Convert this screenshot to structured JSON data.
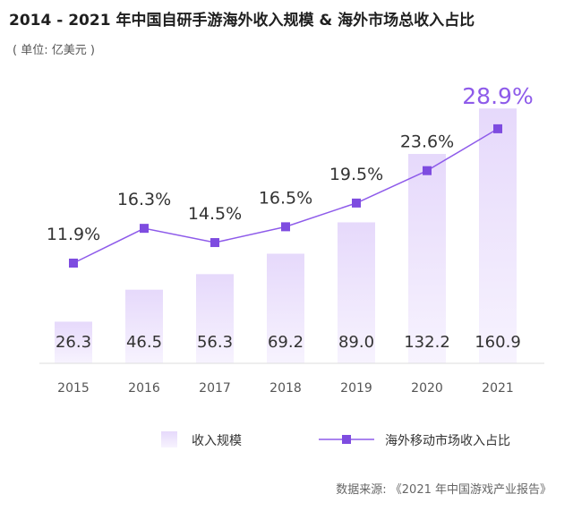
{
  "header": {
    "title": "2014 - 2021 年中国自研手游海外收入规模 & 海外市场总收入占比",
    "subtitle": "( 单位: 亿美元 )"
  },
  "footer": {
    "source": "数据来源: 《2021 年中国游戏产业报告》"
  },
  "colors": {
    "bar_top": "#e6d9fb",
    "bar_bottom": "#f7f3fe",
    "line": "#8e5bea",
    "marker": "#7e4ce0",
    "highlight": "#8e5bea"
  },
  "chart_data": {
    "type": "bar",
    "categories": [
      "2015",
      "2016",
      "2017",
      "2018",
      "2019",
      "2020",
      "2021"
    ],
    "series": [
      {
        "name": "收入规模",
        "type": "bar",
        "values": [
          26.3,
          46.5,
          56.3,
          69.2,
          89.0,
          132.2,
          160.9
        ],
        "labels": [
          "26.3",
          "46.5",
          "56.3",
          "69.2",
          "89.0",
          "132.2",
          "160.9"
        ]
      },
      {
        "name": "海外移动市场收入占比",
        "type": "line",
        "values": [
          11.9,
          16.3,
          14.5,
          16.5,
          19.5,
          23.6,
          28.9
        ],
        "labels": [
          "11.9%",
          "16.3%",
          "14.5%",
          "16.5%",
          "19.5%",
          "23.6%",
          "28.9%"
        ]
      }
    ],
    "title": "2014 - 2021 年中国自研手游海外收入规模 & 海外市场总收入占比",
    "xlabel": "",
    "ylabel": "",
    "legend": "bottom",
    "grid": false
  }
}
